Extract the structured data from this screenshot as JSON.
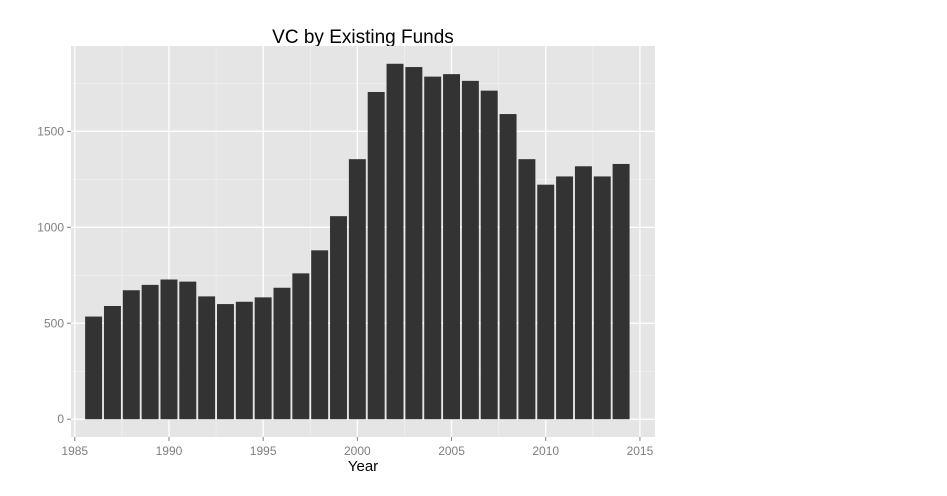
{
  "chart_data": {
    "type": "bar",
    "title": "VC by Existing Funds",
    "xlabel": "Year",
    "ylabel": "",
    "x": [
      1986,
      1987,
      1988,
      1989,
      1990,
      1991,
      1992,
      1993,
      1994,
      1995,
      1996,
      1997,
      1998,
      1999,
      2000,
      2001,
      2002,
      2003,
      2004,
      2005,
      2006,
      2007,
      2008,
      2009,
      2010,
      2011,
      2012,
      2013,
      2014
    ],
    "values": [
      535,
      590,
      672,
      700,
      728,
      717,
      640,
      600,
      612,
      635,
      685,
      760,
      880,
      1058,
      1355,
      1705,
      1852,
      1835,
      1785,
      1798,
      1763,
      1712,
      1590,
      1355,
      1222,
      1265,
      1318,
      1265,
      1330
    ],
    "xlim": [
      1984.8,
      2015.8
    ],
    "ylim": [
      -92.6,
      1944.6
    ],
    "x_ticks": [
      1985,
      1990,
      1995,
      2000,
      2005,
      2010,
      2015
    ],
    "y_ticks": [
      0,
      500,
      1000,
      1500
    ],
    "grid": true,
    "legend": "none",
    "colors": {
      "panel_background": "#e5e5e5",
      "grid_major": "#ffffff",
      "grid_minor": "#f2f2f2",
      "bar_fill": "#333333",
      "tick_text": "#7f7f7f",
      "tick_mark": "#7f7f7f"
    }
  }
}
